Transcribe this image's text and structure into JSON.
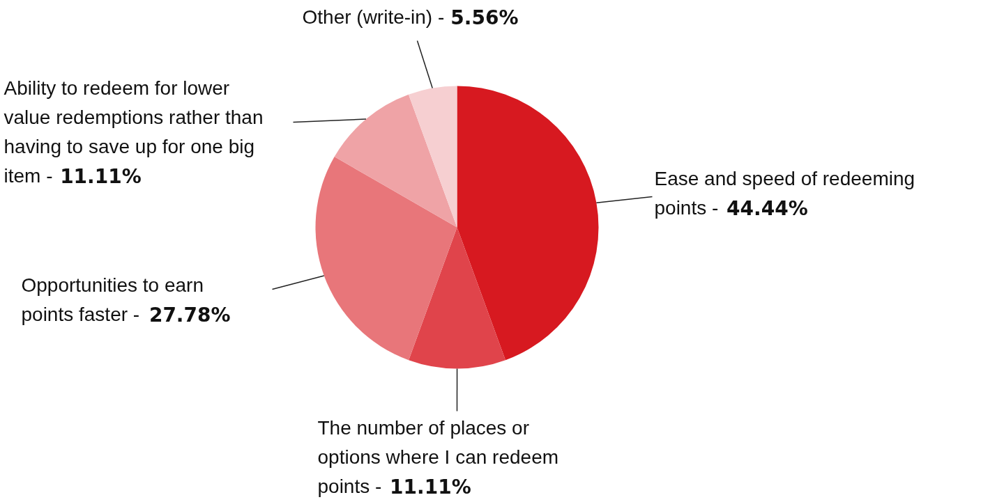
{
  "chart_data": {
    "type": "pie",
    "categories": [
      "Ease and speed of redeeming points -",
      "The number of places or options where I can redeem points -",
      "Opportunities to earn points faster -",
      "Ability to redeem for lower value redemptions rather than having to save up for one big item -",
      "Other (write-in) -"
    ],
    "value_labels": [
      "44.44%",
      "11.11%",
      "27.78%",
      "11.11%",
      "5.56%"
    ],
    "values": [
      44.44,
      11.11,
      27.78,
      11.11,
      5.56
    ],
    "colors": [
      "#d71920",
      "#e0444b",
      "#e8767a",
      "#efa3a6",
      "#f6cfd1"
    ],
    "data_labels": true
  }
}
